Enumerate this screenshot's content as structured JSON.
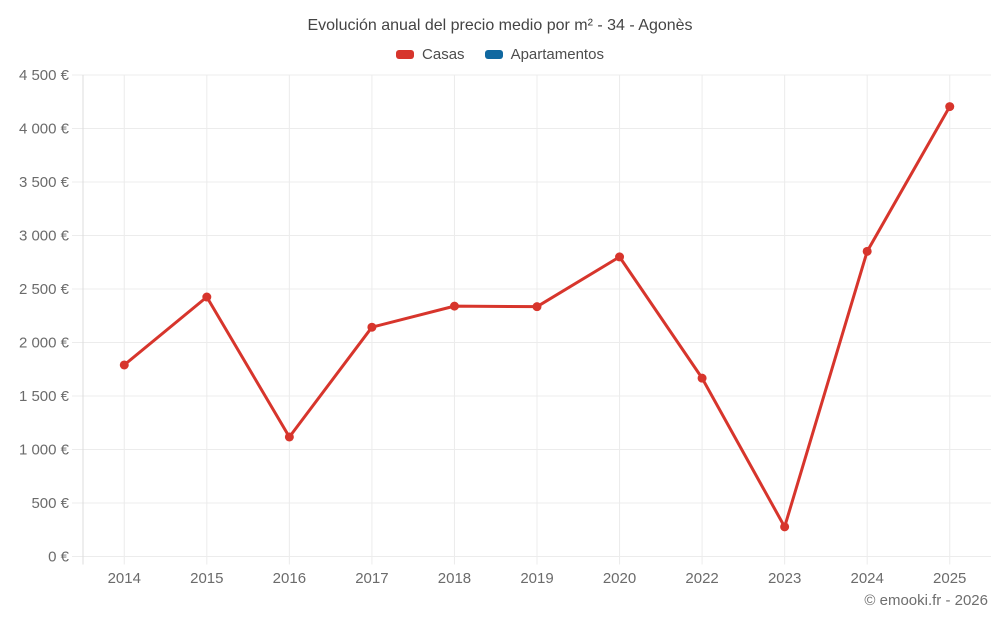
{
  "title": "Evolución anual del precio medio por m² - 34 - Agonès",
  "footer": "© emooki.fr - 2026",
  "legend": [
    {
      "label": "Casas",
      "color": "#d7352c"
    },
    {
      "label": "Apartamentos",
      "color": "#1068a0"
    }
  ],
  "colors": {
    "grid": "#ececec",
    "axis": "#dcdcdc",
    "tick_label": "#6b6b6b",
    "title_text": "#444444",
    "legend_text": "#4d4d4d",
    "footer_text": "#6e6e6e",
    "casas": "#d7352c",
    "apartamentos": "#1068a0"
  },
  "chart_data": {
    "type": "line",
    "title": "Evolución anual del precio medio por m² - 34 - Agonès",
    "categories": [
      "2014",
      "2015",
      "2016",
      "2017",
      "2018",
      "2019",
      "2020",
      "2022",
      "2023",
      "2024",
      "2025"
    ],
    "series": [
      {
        "name": "Casas",
        "color": "#d7352c",
        "values": [
          1790,
          2425,
          1117,
          2143,
          2340,
          2335,
          2800,
          1667,
          277,
          2852,
          4205
        ]
      },
      {
        "name": "Apartamentos",
        "color": "#1068a0",
        "values": []
      }
    ],
    "xlabel": "",
    "ylabel": "",
    "ylim": [
      0,
      4500
    ],
    "ytick_step": 500,
    "ytick_labels": [
      "0 €",
      "500 €",
      "1 000 €",
      "1 500 €",
      "2 000 €",
      "2 500 €",
      "3 000 €",
      "3 500 €",
      "4 000 €",
      "4 500 €"
    ],
    "grid": true,
    "legend_position": "top",
    "currency": "€"
  }
}
